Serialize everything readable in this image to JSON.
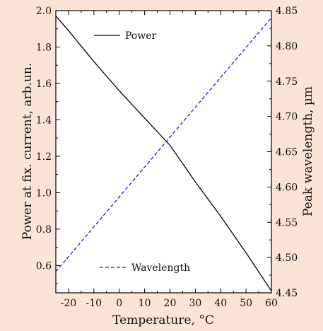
{
  "chart_data": {
    "type": "line",
    "xlabel": "Temperature, °C",
    "ylabel": "Power at fix. current, arb.un.",
    "y2label": "Peak wavelength, µm",
    "xlim": [
      -25,
      60
    ],
    "ylim": [
      0.45,
      2.0
    ],
    "y2lim": [
      4.45,
      4.85
    ],
    "x_ticks": [
      -20,
      -10,
      0,
      10,
      20,
      30,
      40,
      50,
      60
    ],
    "y_ticks": [
      0.6,
      0.8,
      1.0,
      1.2,
      1.4,
      1.6,
      1.8,
      2.0
    ],
    "y2_ticks": [
      4.45,
      4.5,
      4.55,
      4.6,
      4.65,
      4.7,
      4.75,
      4.8,
      4.85
    ],
    "grid": false,
    "legend_position": "top-left / bottom-left (inside plot)",
    "series": [
      {
        "name": "Power",
        "axis": "left",
        "style": "solid",
        "color": "#000000",
        "x": [
          -25,
          -20,
          -10,
          0,
          10,
          20,
          30,
          40,
          50,
          60
        ],
        "y": [
          1.97,
          1.89,
          1.72,
          1.56,
          1.41,
          1.26,
          1.06,
          0.87,
          0.67,
          0.46
        ]
      },
      {
        "name": "Wavelength",
        "axis": "right",
        "style": "dashed",
        "color": "#1a1adb",
        "x": [
          -25,
          60
        ],
        "y": [
          4.48,
          4.84
        ]
      }
    ]
  }
}
